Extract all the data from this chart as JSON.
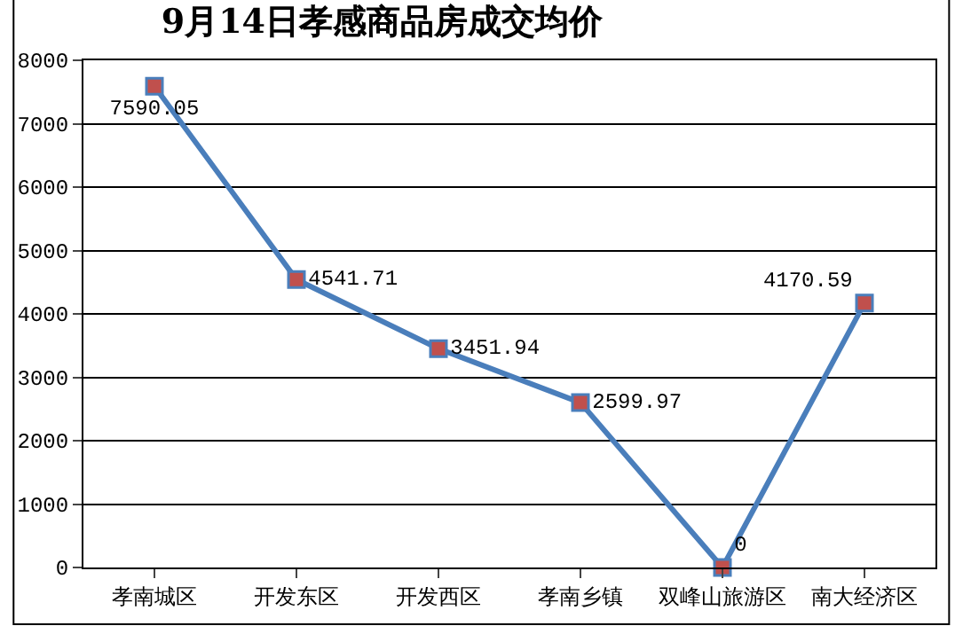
{
  "chart_data": {
    "type": "line",
    "title": "9月14日孝感商品房成交均价",
    "categories": [
      "孝南城区",
      "开发东区",
      "开发西区",
      "孝南乡镇",
      "双峰山旅游区",
      "南大经济区"
    ],
    "series": [
      {
        "color": "#4a7ebb",
        "colors": [
          "#c0504d",
          "#c0504d",
          "#c0504d",
          "#c0504d",
          "#c0504d",
          "#c0504d"
        ],
        "values": [
          7590.05,
          4541.71,
          3451.94,
          2599.97,
          0,
          4170.59
        ]
      }
    ],
    "ylim": [
      0,
      8000
    ],
    "yticks": [
      0,
      1000,
      2000,
      3000,
      4000,
      5000,
      6000,
      7000,
      8000
    ],
    "grid": "y",
    "marker": "square",
    "line_style": "solid",
    "data_labels": true
  }
}
